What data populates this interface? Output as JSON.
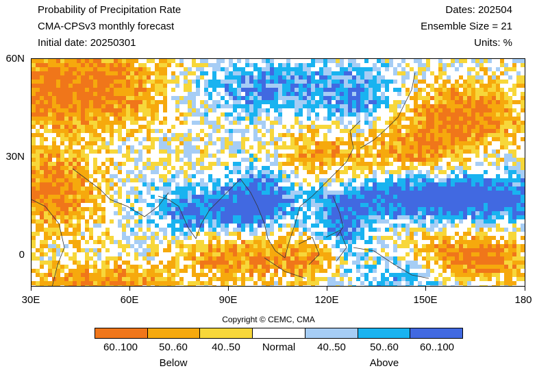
{
  "header": {
    "title": "Probability of Precipitation Rate",
    "model": "CMA-CPSv3 monthly forecast",
    "initial_date": "Initial date: 20250301",
    "dates": "Dates: 202504",
    "ensemble": "Ensemble Size = 21",
    "units": "Units: %"
  },
  "axes": {
    "lat_labels": [
      "60N",
      "30N",
      "0"
    ],
    "lon_labels": [
      "30E",
      "60E",
      "90E",
      "120E",
      "150E",
      "180"
    ],
    "lon_range": [
      30,
      180
    ],
    "lat_range": [
      -10,
      60
    ]
  },
  "copyright": "Copyright © CEMC, CMA",
  "legend": {
    "labels": [
      "60..100",
      "50..60",
      "40..50",
      "Normal",
      "40..50",
      "50..60",
      "60..100"
    ],
    "colors": [
      "#f0761a",
      "#f6a90d",
      "#f7d73a",
      "#ffffff",
      "#a6cdf5",
      "#19b3f0",
      "#4169e1"
    ],
    "group_below": "Below",
    "group_above": "Above"
  }
}
